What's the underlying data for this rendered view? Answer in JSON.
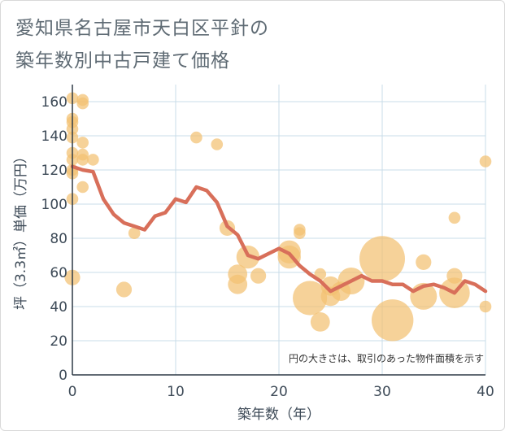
{
  "title": {
    "line1": "愛知県名古屋市天白区平針の",
    "line2": "築年数別中古戸建て価格"
  },
  "colors": {
    "bubble": "#f2c072",
    "line": "#d86f5a",
    "grid": "#c9dce9",
    "text": "#3d4a57"
  },
  "chart_data": {
    "type": "scatter",
    "xlabel": "築年数（年）",
    "ylabel": "坪（3.3㎡）単価（万円）",
    "xlim": [
      0,
      40
    ],
    "ylim": [
      0,
      170
    ],
    "xticks": [
      0,
      10,
      20,
      30,
      40
    ],
    "yticks": [
      0,
      20,
      40,
      60,
      80,
      100,
      120,
      140,
      160
    ],
    "note": "円の大きさは、取引のあった物件面積を示す",
    "series": [
      {
        "name": "trend",
        "kind": "line",
        "x": [
          0,
          1,
          2,
          3,
          4,
          5,
          6,
          7,
          8,
          9,
          10,
          11,
          12,
          13,
          14,
          15,
          16,
          17,
          18,
          19,
          20,
          21,
          22,
          23,
          24,
          25,
          26,
          27,
          28,
          29,
          30,
          31,
          32,
          33,
          34,
          35,
          36,
          37,
          38,
          39,
          40
        ],
        "y": [
          122,
          120,
          119,
          103,
          94,
          89,
          87,
          85,
          93,
          95,
          103,
          101,
          110,
          108,
          101,
          87,
          82,
          70,
          68,
          71,
          74,
          71,
          64,
          59,
          55,
          49,
          52,
          55,
          58,
          55,
          55,
          53,
          53,
          49,
          52,
          53,
          51,
          48,
          55,
          53,
          49
        ]
      },
      {
        "name": "transactions",
        "kind": "bubble",
        "points": [
          {
            "x": 0,
            "y": 162,
            "s": 1
          },
          {
            "x": 0,
            "y": 150,
            "s": 1
          },
          {
            "x": 0,
            "y": 148,
            "s": 1
          },
          {
            "x": 0,
            "y": 144,
            "s": 1
          },
          {
            "x": 0,
            "y": 139,
            "s": 1
          },
          {
            "x": 0,
            "y": 130,
            "s": 1
          },
          {
            "x": 0,
            "y": 126,
            "s": 1
          },
          {
            "x": 0,
            "y": 120,
            "s": 1
          },
          {
            "x": 0,
            "y": 118,
            "s": 1
          },
          {
            "x": 0,
            "y": 103,
            "s": 1
          },
          {
            "x": 0,
            "y": 57,
            "s": 2
          },
          {
            "x": 1,
            "y": 161,
            "s": 1
          },
          {
            "x": 1,
            "y": 159,
            "s": 1
          },
          {
            "x": 1,
            "y": 136,
            "s": 1
          },
          {
            "x": 1,
            "y": 129,
            "s": 1
          },
          {
            "x": 1,
            "y": 126,
            "s": 1
          },
          {
            "x": 1,
            "y": 110,
            "s": 1
          },
          {
            "x": 2,
            "y": 126,
            "s": 1
          },
          {
            "x": 5,
            "y": 50,
            "s": 2
          },
          {
            "x": 6,
            "y": 83,
            "s": 1
          },
          {
            "x": 12,
            "y": 139,
            "s": 1
          },
          {
            "x": 14,
            "y": 135,
            "s": 1
          },
          {
            "x": 15,
            "y": 86,
            "s": 2
          },
          {
            "x": 16,
            "y": 59,
            "s": 3
          },
          {
            "x": 16,
            "y": 53,
            "s": 3
          },
          {
            "x": 17,
            "y": 69,
            "s": 4
          },
          {
            "x": 18,
            "y": 58,
            "s": 2
          },
          {
            "x": 21,
            "y": 72,
            "s": 4
          },
          {
            "x": 21,
            "y": 69,
            "s": 4
          },
          {
            "x": 22,
            "y": 85,
            "s": 1
          },
          {
            "x": 22,
            "y": 83,
            "s": 1
          },
          {
            "x": 23,
            "y": 45,
            "s": 7
          },
          {
            "x": 24,
            "y": 59,
            "s": 1
          },
          {
            "x": 24,
            "y": 31,
            "s": 3
          },
          {
            "x": 25,
            "y": 52,
            "s": 3
          },
          {
            "x": 25,
            "y": 46,
            "s": 3
          },
          {
            "x": 26,
            "y": 49,
            "s": 3
          },
          {
            "x": 27,
            "y": 55,
            "s": 5
          },
          {
            "x": 30,
            "y": 68,
            "s": 10
          },
          {
            "x": 31,
            "y": 32,
            "s": 9
          },
          {
            "x": 34,
            "y": 66,
            "s": 2
          },
          {
            "x": 34,
            "y": 46,
            "s": 5
          },
          {
            "x": 37,
            "y": 92,
            "s": 1
          },
          {
            "x": 37,
            "y": 58,
            "s": 2
          },
          {
            "x": 37,
            "y": 48,
            "s": 6
          },
          {
            "x": 40,
            "y": 125,
            "s": 1
          },
          {
            "x": 40,
            "y": 40,
            "s": 1
          }
        ]
      }
    ]
  }
}
